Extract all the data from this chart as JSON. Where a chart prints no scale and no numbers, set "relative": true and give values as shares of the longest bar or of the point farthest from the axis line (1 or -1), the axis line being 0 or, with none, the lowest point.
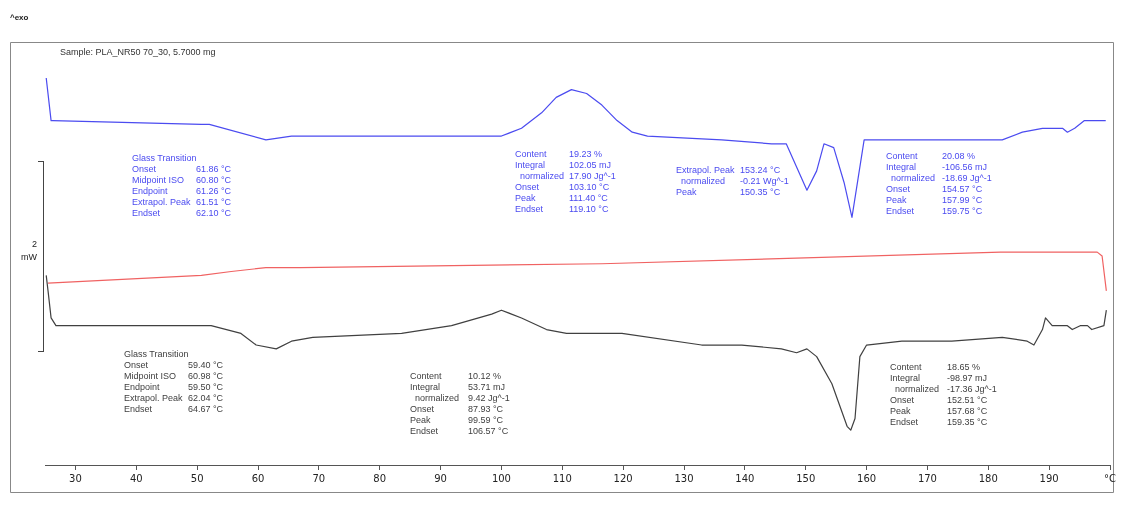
{
  "chart_data": {
    "type": "line",
    "title": "Sample: PLA_NR50 70_30, 5.7000 mg",
    "relative": true,
    "legend": false,
    "grid": false,
    "xlim": [
      25,
      200
    ],
    "xticks": [
      30,
      40,
      50,
      60,
      70,
      80,
      90,
      100,
      110,
      120,
      130,
      140,
      150,
      160,
      170,
      180,
      190,
      {
        "value": 200,
        "label": "°C"
      }
    ],
    "series": [
      {
        "color": "#4b4bf0",
        "x": [
          25.2,
          26.0,
          26.3,
          50.7,
          52,
          61.3,
          65.5,
          69,
          97.5,
          100,
          103.3,
          106.6,
          109,
          111.5,
          114,
          116.5,
          119,
          121.5,
          124,
          136.2,
          144.4,
          146.8,
          148.5,
          150.2,
          151.8,
          153,
          154.6,
          156.3,
          157.6,
          158.6,
          159.6,
          160.2,
          182.3,
          185.6,
          188.9,
          192.2,
          193,
          194.2,
          195.8,
          199.3
        ],
        "values": [
          1,
          0.89,
          0.89,
          0.88,
          0.88,
          0.84,
          0.85,
          0.85,
          0.85,
          0.85,
          0.87,
          0.91,
          0.95,
          0.97,
          0.96,
          0.93,
          0.89,
          0.86,
          0.85,
          0.84,
          0.83,
          0.83,
          0.77,
          0.71,
          0.76,
          0.83,
          0.82,
          0.73,
          0.64,
          0.74,
          0.84,
          0.84,
          0.84,
          0.86,
          0.87,
          0.87,
          0.86,
          0.87,
          0.89,
          0.89
        ]
      },
      {
        "color": "#f06262",
        "x": [
          25.5,
          50.7,
          55.6,
          61.3,
          67,
          116.5,
          182,
          197.9,
          198.7,
          199.4
        ],
        "values": [
          0.47,
          0.49,
          0.5,
          0.51,
          0.51,
          0.52,
          0.55,
          0.55,
          0.54,
          0.45
        ]
      },
      {
        "color": "#404040",
        "x": [
          25.2,
          25.5,
          26,
          26.8,
          30.9,
          52.3,
          57.2,
          59.7,
          63,
          65.5,
          69,
          83.6,
          91.8,
          98.4,
          100,
          103.3,
          107.4,
          110.7,
          119.8,
          132.9,
          139.5,
          146,
          148.5,
          150.2,
          151.8,
          154.3,
          156.8,
          157.4,
          158.1,
          158.9,
          160,
          165.8,
          174,
          182.3,
          186.4,
          187.5,
          188.9,
          189.4,
          190.5,
          193,
          193.8,
          195.1,
          196.3,
          197,
          199,
          199.4
        ],
        "values": [
          0.49,
          0.45,
          0.38,
          0.36,
          0.36,
          0.36,
          0.34,
          0.31,
          0.3,
          0.32,
          0.33,
          0.34,
          0.36,
          0.39,
          0.4,
          0.38,
          0.35,
          0.34,
          0.34,
          0.31,
          0.31,
          0.3,
          0.29,
          0.3,
          0.28,
          0.21,
          0.1,
          0.09,
          0.12,
          0.28,
          0.31,
          0.32,
          0.32,
          0.33,
          0.32,
          0.31,
          0.35,
          0.38,
          0.36,
          0.36,
          0.35,
          0.36,
          0.36,
          0.35,
          0.36,
          0.4
        ]
      }
    ],
    "annotations": [
      "^exo",
      "2\nmW",
      "Glass Transition\nOnset\t61.86 °C\nMidpoint ISO\t60.80 °C\nEndpoint\t61.26 °C\nExtrapol. Peak\t61.51 °C\nEndset\t62.10 °C",
      "Content\t19.23 %\nIntegral\t102.05 mJ\n  normalized\t17.90 Jg^-1\nOnset\t103.10 °C\nPeak\t111.40 °C\nEndset\t119.10 °C",
      "Extrapol. Peak\t153.24 °C\n  normalized\t-0.21 Wg^-1\nPeak\t150.35 °C",
      "Content\t20.08 %\nIntegral\t-106.56 mJ\n  normalized\t-18.69 Jg^-1\nOnset\t154.57 °C\nPeak\t157.99 °C\nEndset\t159.75 °C",
      "Glass Transition\nOnset\t59.40 °C\nMidpoint ISO\t60.98 °C\nEndpoint\t59.50 °C\nExtrapol. Peak\t62.04 °C\nEndset\t64.67 °C",
      "Content\t10.12 %\nIntegral\t53.71 mJ\n  normalized\t9.42 Jg^-1\nOnset\t87.93 °C\nPeak\t99.59 °C\nEndset\t106.57 °C",
      "Content\t18.65 %\nIntegral\t-98.97 mJ\n  normalized\t-17.36 Jg^-1\nOnset\t152.51 °C\nPeak\t157.68 °C\nEndset\t159.35 °C"
    ]
  }
}
